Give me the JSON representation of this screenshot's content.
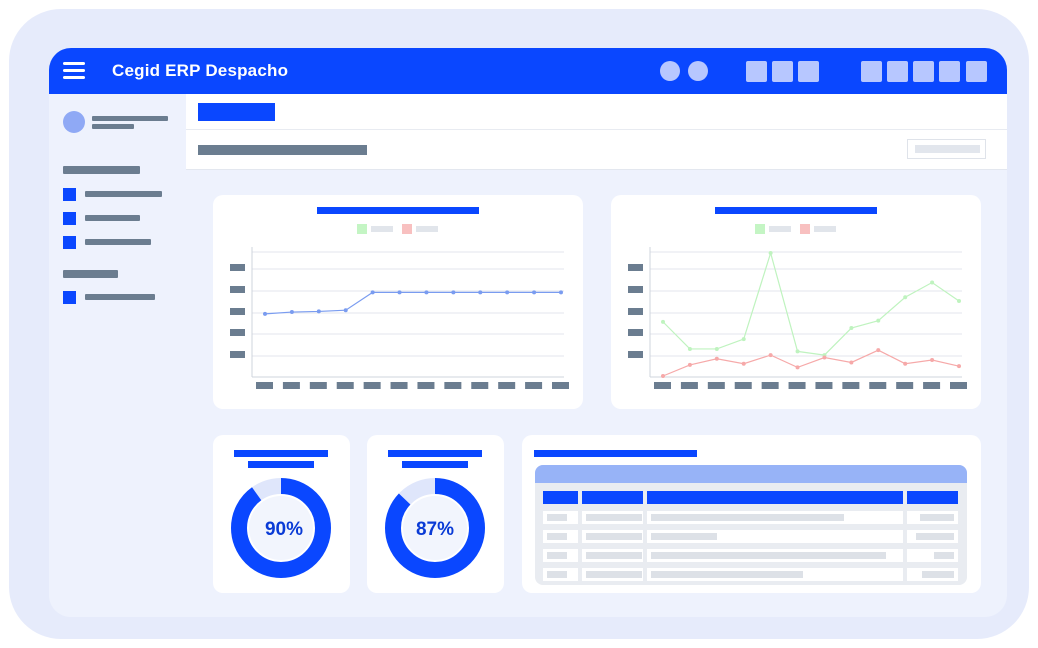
{
  "app": {
    "title": "Cegid ERP Despacho"
  },
  "topbar": {
    "menu_icon": "hamburger-menu-icon",
    "circle_buttons": 2,
    "square_group_1": 3,
    "square_group_2": 5
  },
  "colors": {
    "primary": "#0a47ff",
    "placeholder_text": "#6b7d90",
    "series_green": "#bff3bf",
    "series_red": "#f6a9a9",
    "series_blue": "#7a9cf0",
    "table_header": "#97b3f7"
  },
  "donuts": [
    {
      "label": "90%",
      "value": 90
    },
    {
      "label": "87%",
      "value": 87
    }
  ],
  "chart_data": [
    {
      "type": "line",
      "title": "",
      "series": [
        {
          "values": [
            50.5,
            52,
            52.5,
            53.5,
            68,
            68,
            68,
            68,
            68,
            68,
            68,
            68
          ]
        }
      ]
    },
    {
      "type": "line",
      "title": "",
      "series": [
        {
          "values": [
            44,
            22,
            22,
            30,
            100,
            20,
            17,
            39,
            45,
            64,
            76,
            61
          ]
        },
        {
          "values": [
            0,
            9,
            14,
            10,
            17,
            7,
            15,
            11,
            21,
            10,
            13,
            8
          ]
        }
      ]
    }
  ]
}
